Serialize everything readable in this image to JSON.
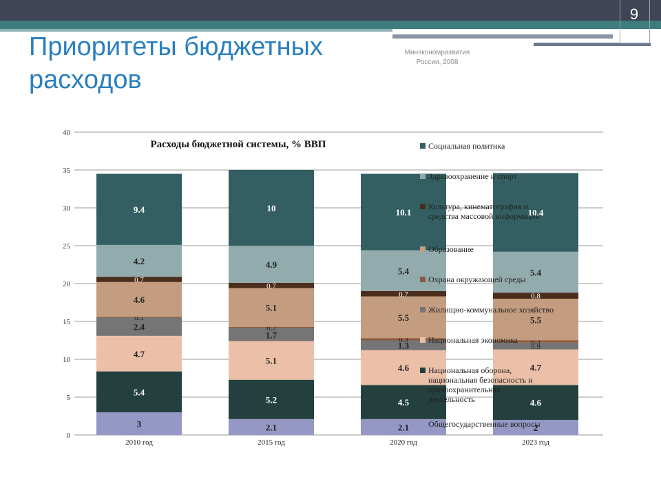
{
  "slide": {
    "page_number": "9",
    "title": "Приоритеты бюджетных расходов",
    "source_line1": "Минэкономразвития",
    "source_line2": "России, 2008"
  },
  "chart_data": {
    "type": "bar",
    "stacked": true,
    "title": "Расходы бюджетной системы, % ВВП",
    "xlabel": "",
    "ylabel": "",
    "ylim": [
      0,
      40
    ],
    "yticks": [
      0,
      5,
      10,
      15,
      20,
      25,
      30,
      35,
      40
    ],
    "grid": true,
    "legend_position": "right",
    "categories": [
      "2010 год",
      "2015 год",
      "2020 год",
      "2023 год"
    ],
    "series": [
      {
        "name": "Общегосударственные вопросы",
        "color": "#9597c4",
        "values": [
          3,
          2.1,
          2.1,
          2
        ],
        "labels": [
          "3",
          "2.1",
          "2.1",
          "2"
        ]
      },
      {
        "name": "Национальная оборона, национальная безопасность и правоохранительная деятельность",
        "color": "#23403f",
        "values": [
          5.4,
          5.2,
          4.5,
          4.6
        ],
        "labels": [
          "5.4",
          "5.2",
          "4.5",
          "4.6"
        ]
      },
      {
        "name": "Национальная экономика",
        "color": "#ecc0a8",
        "values": [
          4.7,
          5.1,
          4.6,
          4.7
        ],
        "labels": [
          "4.7",
          "5.1",
          "4.6",
          "4.7"
        ]
      },
      {
        "name": "Жилищно-коммунальное хозяйство",
        "color": "#757575",
        "values": [
          2.4,
          1.7,
          1.3,
          0.9
        ],
        "labels": [
          "2.4",
          "1.7",
          "1.3",
          "0.9"
        ]
      },
      {
        "name": "Охрана окружающей среды",
        "color": "#8c5a3c",
        "values": [
          0.1,
          0.2,
          0.3,
          0.3
        ],
        "labels": [
          "0.1",
          "0.2",
          "0.3",
          "0.3"
        ]
      },
      {
        "name": "Образование",
        "color": "#c49d80",
        "values": [
          4.6,
          5.1,
          5.5,
          5.5
        ],
        "labels": [
          "4.6",
          "5.1",
          "5.5",
          "5.5"
        ]
      },
      {
        "name": "Культура, кинематография и средства массовой информации",
        "color": "#4b2d1c",
        "values": [
          0.7,
          0.7,
          0.7,
          0.8
        ],
        "labels": [
          "0.7",
          "0.7",
          "0.7",
          "0.8"
        ]
      },
      {
        "name": "Здравоохранение и спорт",
        "color": "#92abac",
        "values": [
          4.2,
          4.9,
          5.4,
          5.4
        ],
        "labels": [
          "4.2",
          "4.9",
          "5.4",
          "5.4"
        ]
      },
      {
        "name": "Социальная политика",
        "color": "#335f62",
        "values": [
          9.4,
          10,
          10.1,
          10.4
        ],
        "labels": [
          "9.4",
          "10",
          "10.1",
          "10.4"
        ]
      }
    ]
  }
}
